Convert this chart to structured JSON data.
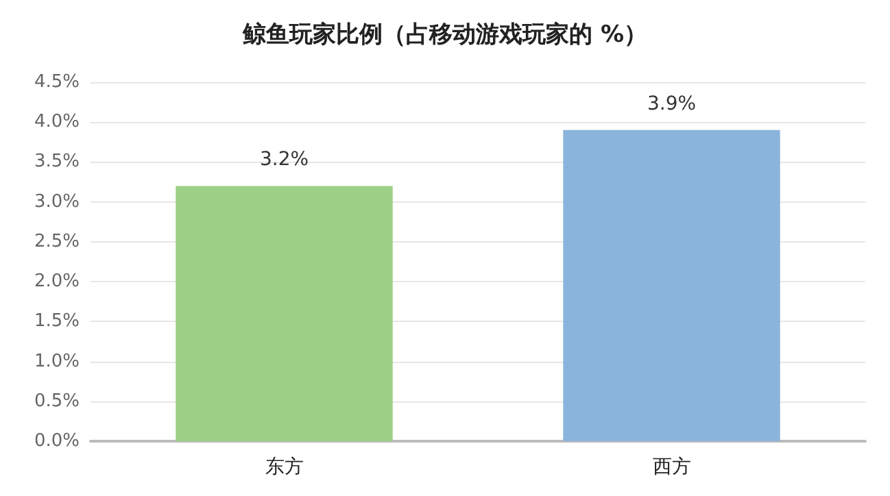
{
  "chart_data": {
    "type": "bar",
    "title": "鲸鱼玩家比例（占移动游戏玩家的 %）",
    "categories": [
      "东方",
      "西方"
    ],
    "values": [
      3.2,
      3.9
    ],
    "value_labels": [
      "3.2%",
      "3.9%"
    ],
    "colors": [
      "#9dd087",
      "#8ab4dc"
    ],
    "ylim": [
      0,
      4.5
    ],
    "yticks": [
      {
        "value": 0,
        "label": "0.0%"
      },
      {
        "value": 0.5,
        "label": "0.5%"
      },
      {
        "value": 1,
        "label": "1.0%"
      },
      {
        "value": 1.5,
        "label": "1.5%"
      },
      {
        "value": 2,
        "label": "2.0%"
      },
      {
        "value": 2.5,
        "label": "2.5%"
      },
      {
        "value": 3,
        "label": "3.0%"
      },
      {
        "value": 3.5,
        "label": "3.5%"
      },
      {
        "value": 4,
        "label": "4.0%"
      },
      {
        "value": 4.5,
        "label": "4.5%"
      }
    ],
    "grid": "y"
  }
}
